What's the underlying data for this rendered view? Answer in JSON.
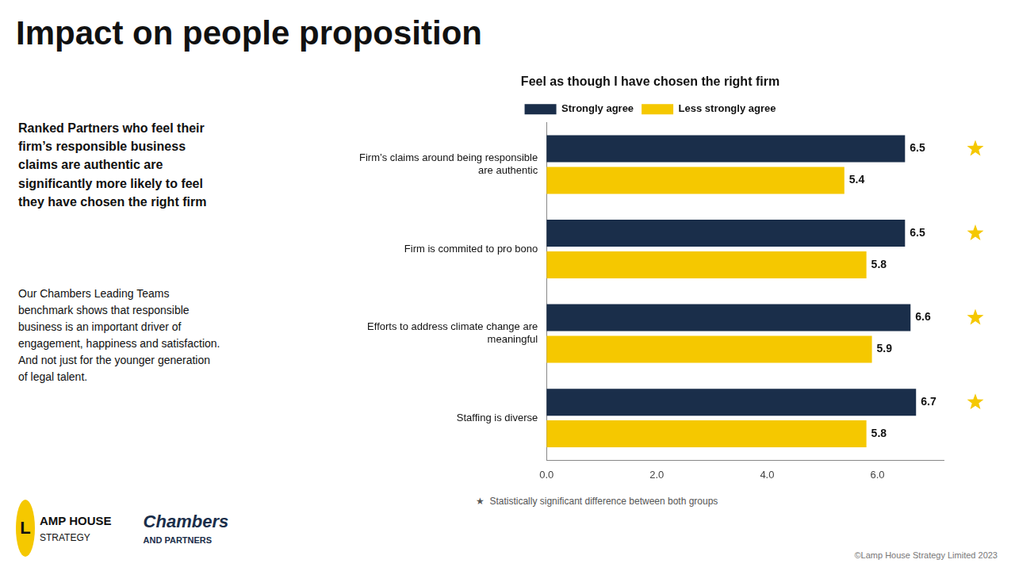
{
  "chart_data": {
    "type": "bar",
    "orientation": "horizontal",
    "title": "Impact on people proposition",
    "subtitle": "Feel as though I have chosen the right firm",
    "bold_text": "Ranked Partners who feel their\nfirm’s responsible business\nclaims are authentic are\nsignificantly more likely to feel\nthey have chosen the right firm",
    "normal_text": "Our Chambers Leading Teams\nbenchmark shows that responsible\nbusiness is an important driver of\nengagement, happiness and satisfaction.\nAnd not just for the younger generation\nof legal talent.",
    "categories": [
      "Firm’s claims around being responsible\nare authentic",
      "Firm is commited to pro bono",
      "Efforts to address climate change are\nmeaningful",
      "Staffing is diverse"
    ],
    "series": [
      {
        "name": "Strongly agree",
        "color": "#1a2e4a",
        "values": [
          6.5,
          6.5,
          6.6,
          6.7
        ]
      },
      {
        "name": "Less strongly agree",
        "color": "#f5c800",
        "values": [
          5.4,
          5.8,
          5.9,
          5.8
        ]
      }
    ],
    "stars": {
      "values": [
        true,
        true,
        true,
        true
      ],
      "marker": "star",
      "color": "#f5c800"
    },
    "xlim": [
      0,
      7.2
    ],
    "xticks": [
      {
        "value": 0.0,
        "label": "0.0"
      },
      {
        "value": 2.0,
        "label": "2.0"
      },
      {
        "value": 4.0,
        "label": "4.0"
      },
      {
        "value": 6.0,
        "label": "6.0"
      }
    ],
    "grid": false,
    "legend": "top",
    "data_labels": true,
    "star_note": "★  Statistically significant difference between both groups",
    "footnote": "©Lamp House Strategy Limited 2023",
    "logo_texts": [
      "L",
      "AMP HOUSE",
      "STRATEGY",
      "Chambers",
      "AND PARTNERS"
    ]
  }
}
